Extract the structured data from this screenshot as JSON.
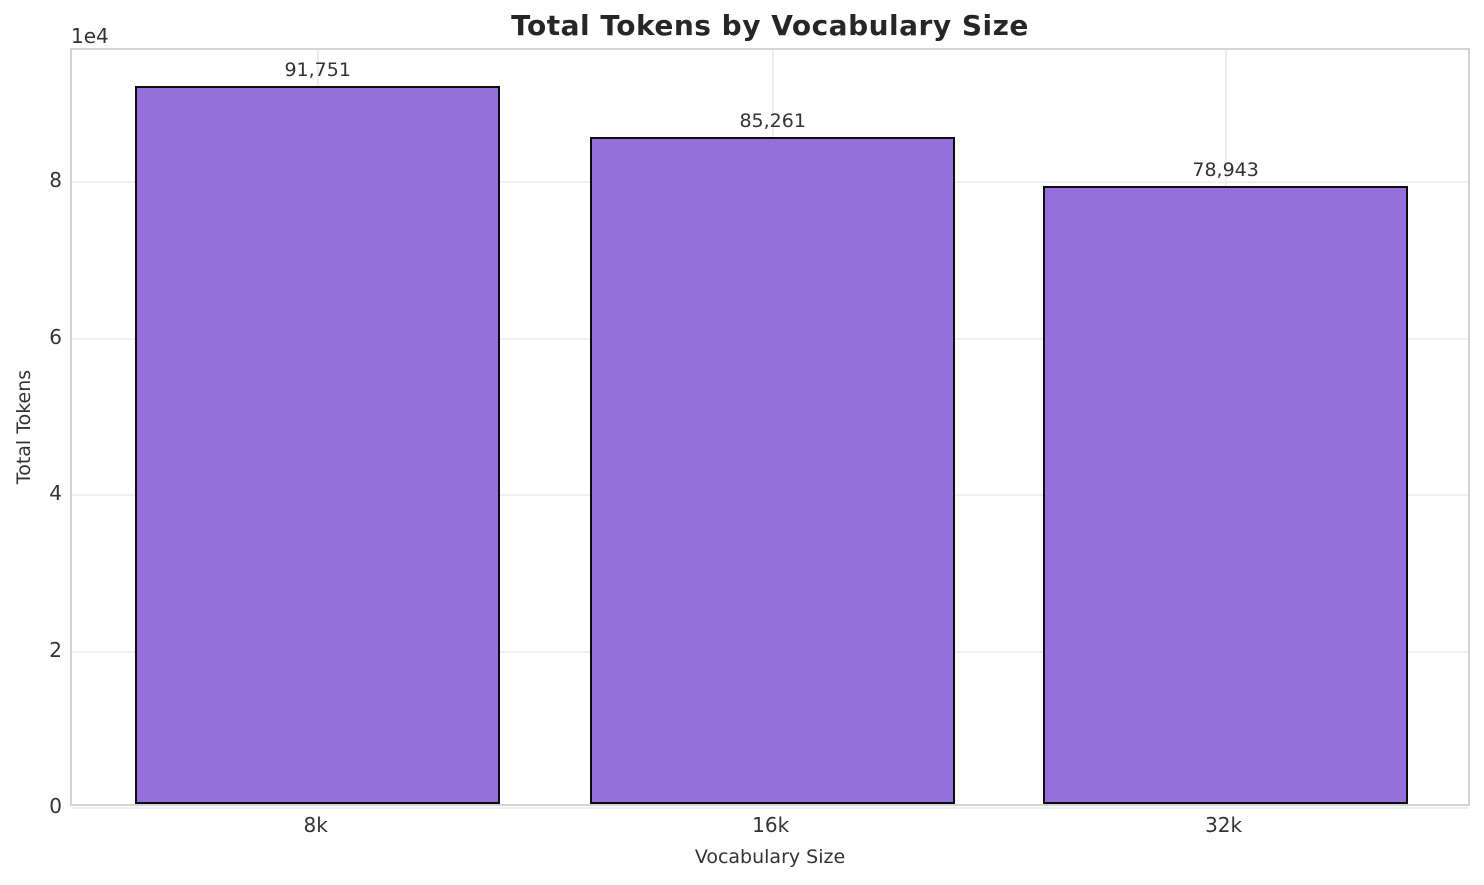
{
  "chart_data": {
    "type": "bar",
    "title": "Total Tokens by Vocabulary Size",
    "xlabel": "Vocabulary Size",
    "ylabel": "Total Tokens",
    "y_offset_label": "1e4",
    "categories": [
      "8k",
      "16k",
      "32k"
    ],
    "values": [
      91751,
      85261,
      78943
    ],
    "value_labels": [
      "91,751",
      "85,261",
      "78,943"
    ],
    "ylim": [
      0,
      96900
    ],
    "yticks": [
      0,
      20000,
      40000,
      60000,
      80000
    ],
    "ytick_labels": [
      "0",
      "2",
      "4",
      "6",
      "8"
    ],
    "grid": true,
    "legend": false,
    "colors": {
      "bar_fill": "#9370DB",
      "bar_edge": "#0d0d0d",
      "grid": "#efefef",
      "spine": "#d4d4d4",
      "text": "#333333",
      "title": "#262626"
    }
  }
}
